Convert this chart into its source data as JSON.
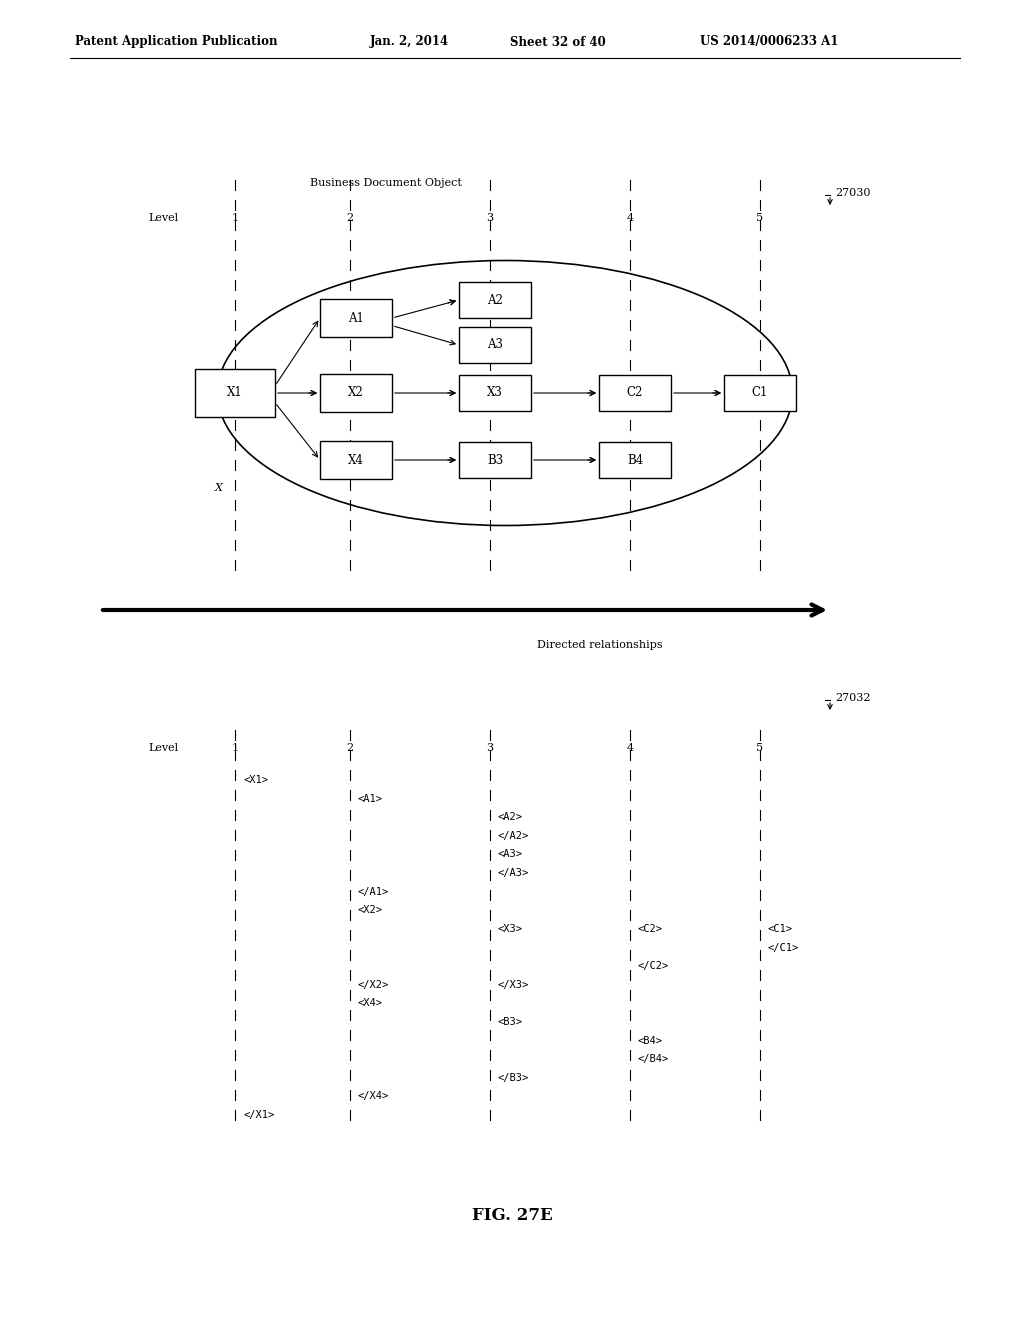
{
  "fig_width": 10.24,
  "fig_height": 13.2,
  "bg_color": "#ffffff",
  "header_text": "Patent Application Publication",
  "header_date": "Jan. 2, 2014",
  "header_sheet": "Sheet 32 of 40",
  "header_patent": "US 2014/0006233 A1",
  "diagram1_label": "27030",
  "diagram2_label": "27032",
  "fig_label": "FIG. 27E",
  "bdo_label": "Business Document Object",
  "directed_label": "Directed relationships",
  "xml_items": [
    {
      "col": 1,
      "text": "<X1>",
      "row": 1
    },
    {
      "col": 2,
      "text": "<A1>",
      "row": 2
    },
    {
      "col": 3,
      "text": "<A2>",
      "row": 3
    },
    {
      "col": 3,
      "text": "</A2>",
      "row": 4
    },
    {
      "col": 3,
      "text": "<A3>",
      "row": 5
    },
    {
      "col": 3,
      "text": "</A3>",
      "row": 6
    },
    {
      "col": 2,
      "text": "</A1>",
      "row": 7
    },
    {
      "col": 2,
      "text": "<X2>",
      "row": 8
    },
    {
      "col": 3,
      "text": "<X3>",
      "row": 9
    },
    {
      "col": 4,
      "text": "<C2>",
      "row": 9
    },
    {
      "col": 5,
      "text": "<C1>",
      "row": 9
    },
    {
      "col": 5,
      "text": "</C1>",
      "row": 10
    },
    {
      "col": 4,
      "text": "</C2>",
      "row": 11
    },
    {
      "col": 2,
      "text": "</X2>",
      "row": 12
    },
    {
      "col": 2,
      "text": "<X4>",
      "row": 13
    },
    {
      "col": 3,
      "text": "</X3>",
      "row": 12
    },
    {
      "col": 3,
      "text": "<B3>",
      "row": 14
    },
    {
      "col": 4,
      "text": "<B4>",
      "row": 15
    },
    {
      "col": 4,
      "text": "</B4>",
      "row": 16
    },
    {
      "col": 3,
      "text": "</B3>",
      "row": 17
    },
    {
      "col": 2,
      "text": "</X4>",
      "row": 18
    },
    {
      "col": 1,
      "text": "</X1>",
      "row": 19
    }
  ]
}
